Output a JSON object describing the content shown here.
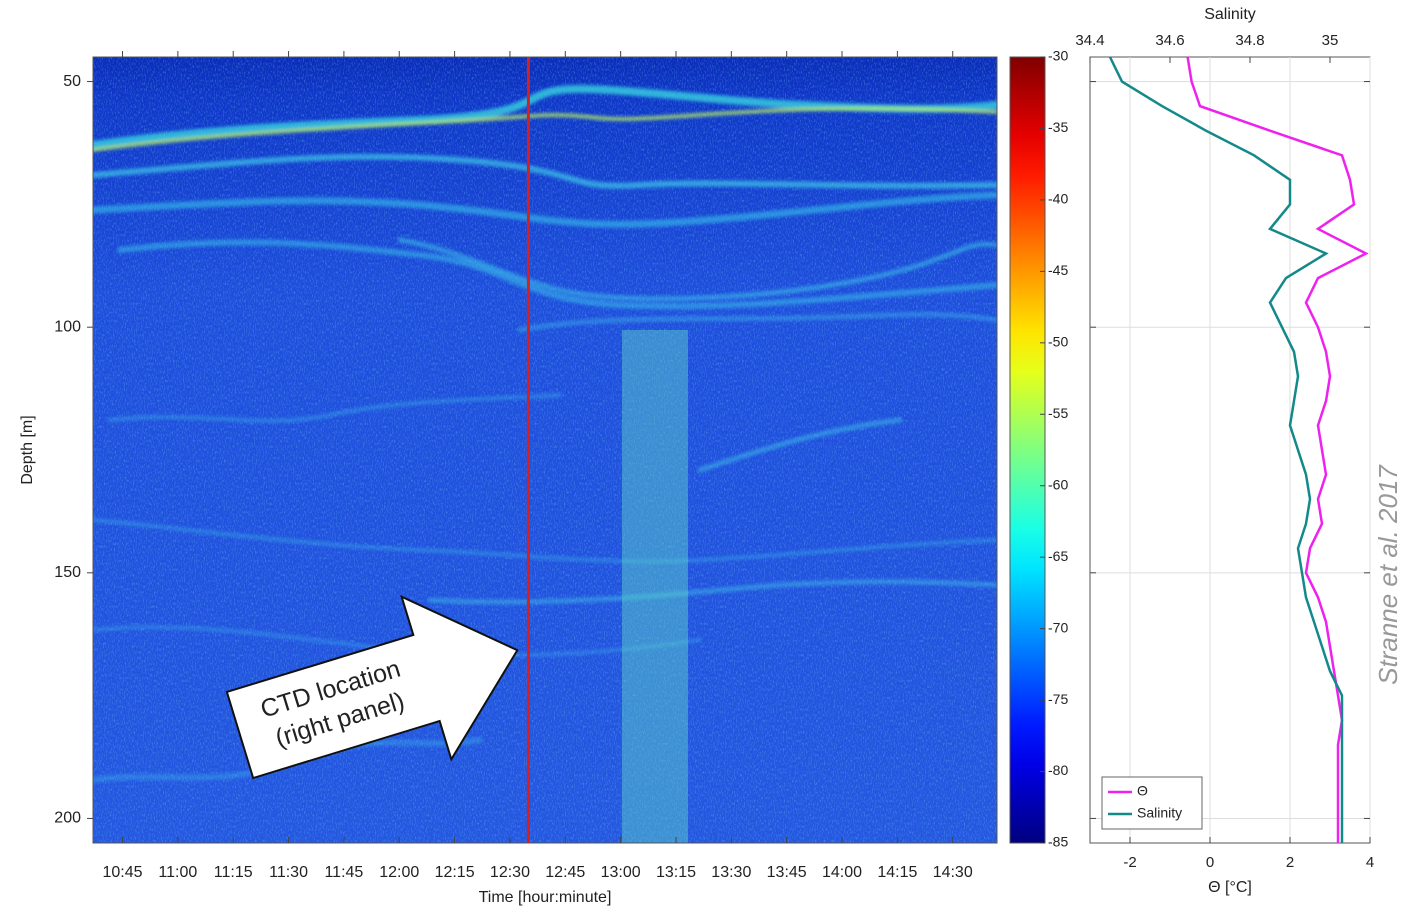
{
  "chart_data": [
    {
      "type": "heatmap",
      "xlabel": "Time [hour:minute]",
      "ylabel": "Depth [m]",
      "xlim": [
        637,
        882
      ],
      "xticks": [
        {
          "value": 645,
          "label": "10:45"
        },
        {
          "value": 660,
          "label": "11:00"
        },
        {
          "value": 675,
          "label": "11:15"
        },
        {
          "value": 690,
          "label": "11:30"
        },
        {
          "value": 705,
          "label": "11:45"
        },
        {
          "value": 720,
          "label": "12:00"
        },
        {
          "value": 735,
          "label": "12:15"
        },
        {
          "value": 750,
          "label": "12:30"
        },
        {
          "value": 765,
          "label": "12:45"
        },
        {
          "value": 780,
          "label": "13:00"
        },
        {
          "value": 795,
          "label": "13:15"
        },
        {
          "value": 810,
          "label": "13:30"
        },
        {
          "value": 825,
          "label": "13:45"
        },
        {
          "value": 840,
          "label": "14:00"
        },
        {
          "value": 855,
          "label": "14:15"
        },
        {
          "value": 870,
          "label": "14:30"
        }
      ],
      "ylim": [
        45,
        205
      ],
      "y_reversed": true,
      "yticks": [
        50,
        100,
        150,
        200
      ],
      "colorbar": {
        "lim": [
          -85,
          -30
        ],
        "ticks": [
          -30,
          -35,
          -40,
          -45,
          -50,
          -55,
          -60,
          -65,
          -70,
          -75,
          -80,
          -85
        ],
        "colormap": "jet"
      },
      "annotation": [
        "CTD location",
        "(right panel)"
      ],
      "marker_x": 755,
      "marker_color": "#d42020"
    },
    {
      "type": "line",
      "xlabel": "Θ [°C]",
      "x2label": "Salinity",
      "xlim": [
        -3,
        4
      ],
      "xticks": [
        -2,
        0,
        2,
        4
      ],
      "x2lim": [
        34.4,
        35.1
      ],
      "x2ticks": [
        34.4,
        34.6,
        34.8,
        35
      ],
      "ylim": [
        45,
        205
      ],
      "y_reversed": true,
      "yticks": [
        50,
        100,
        150,
        200
      ],
      "grid": true,
      "legend": "lower left",
      "y": [
        45,
        50,
        55,
        60,
        65,
        70,
        75,
        80,
        85,
        90,
        95,
        100,
        105,
        110,
        115,
        120,
        125,
        130,
        135,
        140,
        145,
        150,
        155,
        160,
        165,
        170,
        175,
        180,
        185,
        190,
        195,
        200,
        205
      ],
      "series": [
        {
          "name": "Θ",
          "color": "#ee22ee",
          "values": [
            -0.56,
            -0.46,
            -0.25,
            1.5,
            3.3,
            3.5,
            3.6,
            2.7,
            3.9,
            2.7,
            2.4,
            2.7,
            2.9,
            3.0,
            2.9,
            2.7,
            2.8,
            2.9,
            2.7,
            2.8,
            2.5,
            2.4,
            2.7,
            2.9,
            3.0,
            3.1,
            3.2,
            3.3,
            3.2,
            3.2,
            3.2,
            3.2,
            3.2
          ]
        },
        {
          "name": "Salinity",
          "color": "#14898a",
          "axis": "x2",
          "values": [
            34.45,
            34.48,
            34.58,
            34.69,
            34.81,
            34.9,
            34.9,
            34.85,
            34.99,
            34.89,
            34.85,
            34.88,
            34.91,
            34.92,
            34.91,
            34.9,
            34.92,
            34.94,
            34.95,
            34.94,
            34.92,
            34.93,
            34.94,
            34.96,
            34.98,
            35.0,
            35.03,
            35.03,
            35.03,
            35.03,
            35.03,
            35.03,
            35.03
          ]
        }
      ]
    }
  ],
  "credit": "Stranne et al. 2017"
}
